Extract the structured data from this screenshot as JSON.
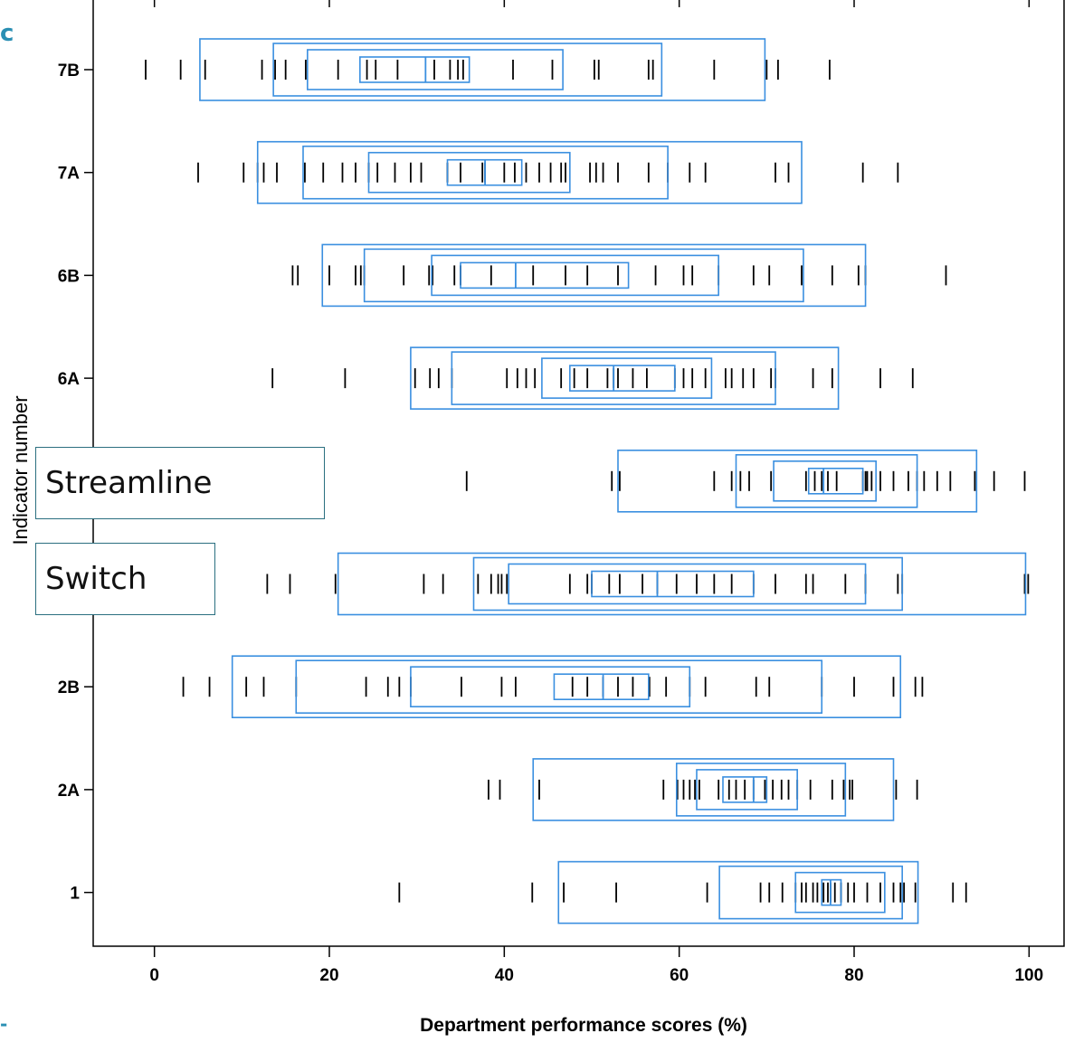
{
  "chart_data": {
    "type": "letter-value boxplot with rug",
    "xlabel": "Department performance scores (%)",
    "ylabel": "Indicator number",
    "xlim": [
      -7,
      104
    ],
    "x_ticks": [
      0,
      20,
      40,
      60,
      80,
      100
    ],
    "categories": [
      "7B",
      "7A",
      "6B",
      "6A",
      "",
      "",
      "2B",
      "2A",
      "1"
    ],
    "box_color": "#3a8fe0",
    "series": [
      {
        "label": "7B",
        "median": 31,
        "boxes": [
          [
            23.5,
            36
          ],
          [
            17.5,
            46.7
          ],
          [
            13.6,
            58
          ],
          [
            5.2,
            69.8
          ]
        ],
        "points": [
          -1,
          3,
          5.8,
          12.3,
          13.8,
          15,
          17.3,
          21,
          24.3,
          25.3,
          27.8,
          32,
          33.8,
          34.7,
          35.3,
          41,
          45.5,
          50.3,
          50.8,
          56.5,
          57,
          64,
          70,
          71.3,
          77.2
        ]
      },
      {
        "label": "7A",
        "median": 37.8,
        "boxes": [
          [
            33.5,
            42
          ],
          [
            24.5,
            47.5
          ],
          [
            17,
            58.7
          ],
          [
            11.8,
            74
          ]
        ],
        "points": [
          5,
          10.2,
          11.8,
          12.5,
          14,
          17.2,
          19.3,
          21.5,
          23,
          24.5,
          25.5,
          27.5,
          29.3,
          30.5,
          33.5,
          35,
          37.5,
          37.8,
          40,
          41.2,
          42.5,
          44,
          45.3,
          46.5,
          47,
          49.8,
          50.5,
          51.3,
          53,
          56.5,
          58.7,
          61.2,
          63,
          71,
          72.5,
          81,
          85
        ]
      },
      {
        "label": "6B",
        "median": 41.3,
        "boxes": [
          [
            35,
            54.2
          ],
          [
            31.7,
            64.5
          ],
          [
            24,
            74.2
          ],
          [
            19.2,
            81.3
          ]
        ],
        "points": [
          15.8,
          16.4,
          20,
          23,
          23.6,
          24,
          28.5,
          31.4,
          31.8,
          34.3,
          35,
          38.5,
          43.3,
          47,
          49.5,
          53,
          57.3,
          60.5,
          61.5,
          64.5,
          68.5,
          70.3,
          74,
          77.5,
          80.5,
          81.3,
          90.5
        ]
      },
      {
        "label": "6A",
        "median": 52.5,
        "boxes": [
          [
            47.5,
            59.5
          ],
          [
            44.3,
            63.7
          ],
          [
            34,
            71
          ],
          [
            29.3,
            78.2
          ]
        ],
        "points": [
          13.5,
          21.8,
          29.8,
          31.5,
          32.5,
          34,
          40.3,
          41.5,
          42.5,
          43.5,
          46.5,
          48,
          49.5,
          51.8,
          52.5,
          53,
          54.7,
          56.3,
          59.5,
          60.5,
          61.5,
          63,
          65.3,
          66,
          67.3,
          68.5,
          70.5,
          71,
          75.3,
          77.5,
          83,
          86.7
        ]
      },
      {
        "label": "",
        "median": 76.5,
        "boxes": [
          [
            74.8,
            81
          ],
          [
            70.8,
            82.5
          ],
          [
            66.5,
            87.2
          ],
          [
            53,
            94
          ]
        ],
        "points": [
          35.7,
          52.3,
          53.2,
          64,
          66,
          67,
          68,
          70.5,
          74.5,
          75.5,
          76.3,
          77,
          78,
          81,
          81.3,
          81.5,
          82,
          83,
          84.5,
          86.2,
          87.2,
          88,
          89.5,
          91,
          93.8,
          96,
          99.5
        ]
      },
      {
        "label": "",
        "median": 57.5,
        "boxes": [
          [
            50,
            68.5
          ],
          [
            40.5,
            81.3
          ],
          [
            36.5,
            85.5
          ],
          [
            21,
            99.6
          ]
        ],
        "points": [
          12.9,
          15.5,
          20.7,
          30.8,
          33,
          37,
          38.5,
          39.3,
          39.7,
          40.3,
          47.5,
          49.5,
          50,
          52,
          53.2,
          55.8,
          57.5,
          59.7,
          62,
          64,
          66,
          68.5,
          71,
          74.5,
          75.3,
          79,
          81.3,
          85,
          85.5,
          99.5,
          99.9
        ]
      },
      {
        "label": "2B",
        "median": 51.3,
        "boxes": [
          [
            45.7,
            56.5
          ],
          [
            29.3,
            61.2
          ],
          [
            16.2,
            76.3
          ],
          [
            8.9,
            85.3
          ]
        ],
        "points": [
          3.3,
          6.3,
          10.5,
          12.5,
          16.2,
          24.2,
          26.7,
          28,
          29.3,
          35.1,
          39.7,
          41.3,
          47.8,
          49.5,
          51.3,
          53,
          54.7,
          56.6,
          58.5,
          61.2,
          63,
          68.8,
          70.3,
          76.3,
          80,
          84.5,
          87,
          87.8
        ]
      },
      {
        "label": "2A",
        "median": 68.5,
        "boxes": [
          [
            65,
            70
          ],
          [
            62,
            73.5
          ],
          [
            59.7,
            79
          ],
          [
            43.3,
            84.5
          ]
        ],
        "points": [
          38.2,
          39.5,
          44,
          58.2,
          59.8,
          60.5,
          61.2,
          61.8,
          62.3,
          64.5,
          65.7,
          66.5,
          67.5,
          68.5,
          69.8,
          70.7,
          71.7,
          72.5,
          73.5,
          75,
          77.5,
          78.8,
          79.5,
          79.8,
          84.8,
          87.2
        ]
      },
      {
        "label": "1",
        "median": 77.3,
        "boxes": [
          [
            76.3,
            78.5
          ],
          [
            73.3,
            83.5
          ],
          [
            64.6,
            85.5
          ],
          [
            46.2,
            87.3
          ]
        ],
        "points": [
          28,
          43.2,
          46.8,
          52.8,
          63.2,
          69.3,
          70.3,
          71.8,
          73.3,
          74,
          74.5,
          75.3,
          75.8,
          76.5,
          77,
          77.3,
          77.8,
          78.5,
          79.3,
          80,
          81.5,
          83,
          84.5,
          85.3,
          85.7,
          87,
          91.3,
          92.8
        ]
      }
    ]
  },
  "overlays": {
    "streamline_label": "Streamline",
    "switch_label": "Switch"
  }
}
